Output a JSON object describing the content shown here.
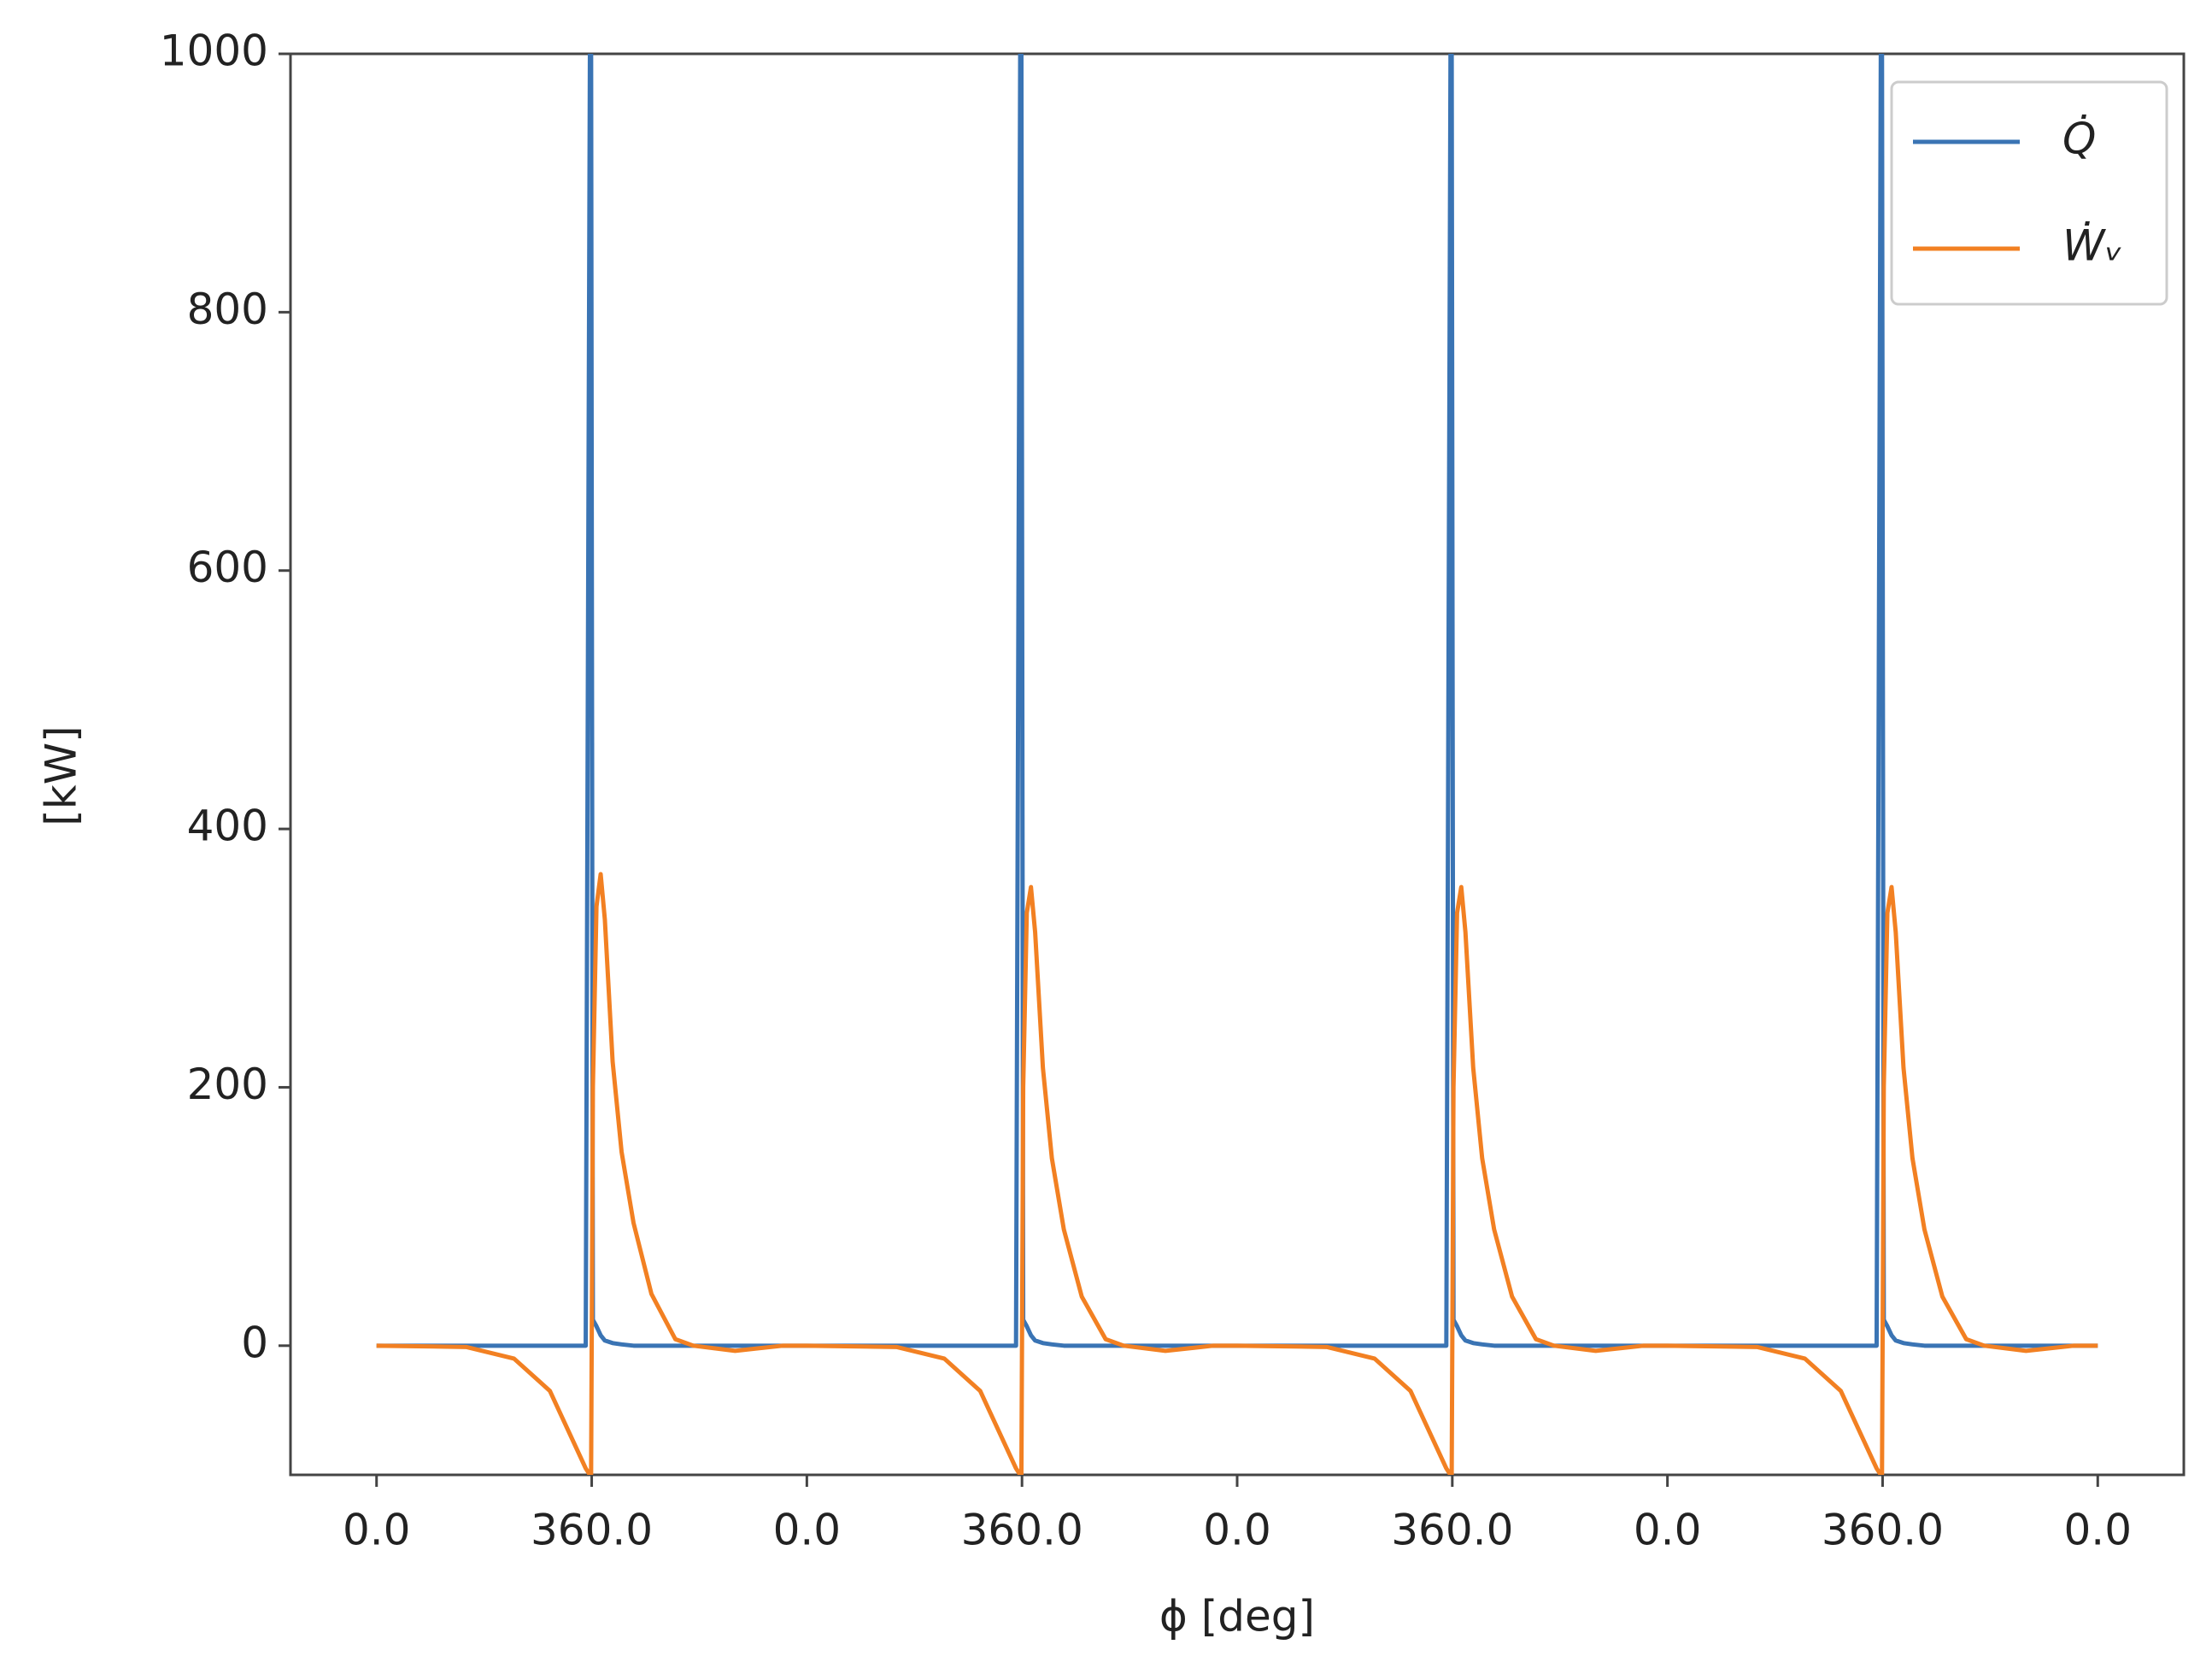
{
  "chart_data": {
    "type": "line",
    "x_label": "ϕ [deg]",
    "y_label": "[kW]",
    "x": [
      0,
      150,
      230,
      290,
      330,
      350,
      357,
      359,
      362,
      368,
      375,
      382,
      395,
      410,
      430,
      460,
      500,
      530,
      600,
      680,
      720,
      870,
      950,
      1010,
      1050,
      1070,
      1077,
      1079,
      1082,
      1088,
      1095,
      1102,
      1115,
      1130,
      1150,
      1180,
      1220,
      1250,
      1320,
      1400,
      1440,
      1590,
      1670,
      1730,
      1770,
      1790,
      1797,
      1799,
      1802,
      1808,
      1815,
      1822,
      1835,
      1850,
      1870,
      1900,
      1940,
      1970,
      2040,
      2120,
      2160,
      2310,
      2390,
      2450,
      2490,
      2510,
      2517,
      2519,
      2522,
      2528,
      2535,
      2542,
      2555,
      2570,
      2590,
      2620,
      2660,
      2690,
      2760,
      2840,
      2880
    ],
    "series": [
      {
        "name": "Q̇",
        "color": "#3a74b4",
        "values": [
          0,
          0,
          0,
          0,
          0,
          0,
          1000,
          1000,
          20,
          15,
          8,
          4,
          2,
          1,
          0,
          0,
          0,
          0,
          0,
          0,
          0,
          0,
          0,
          0,
          0,
          0,
          1000,
          1000,
          20,
          15,
          8,
          4,
          2,
          1,
          0,
          0,
          0,
          0,
          0,
          0,
          0,
          0,
          0,
          0,
          0,
          0,
          1000,
          1000,
          20,
          15,
          8,
          4,
          2,
          1,
          0,
          0,
          0,
          0,
          0,
          0,
          0,
          0,
          0,
          0,
          0,
          0,
          1000,
          1000,
          20,
          15,
          8,
          4,
          2,
          1,
          0,
          0,
          0,
          0,
          0,
          0,
          0
        ]
      },
      {
        "name": "Ẇᵥ",
        "color": "#f28022",
        "values": [
          0,
          -1,
          -10,
          -35,
          -75,
          -95,
          -100,
          -100,
          200,
          340,
          365,
          330,
          220,
          150,
          95,
          40,
          5,
          0,
          -4,
          0,
          0,
          -1,
          -10,
          -35,
          -75,
          -95,
          -100,
          -100,
          200,
          335,
          355,
          320,
          215,
          145,
          90,
          38,
          5,
          0,
          -4,
          0,
          0,
          -1,
          -10,
          -35,
          -75,
          -95,
          -100,
          -100,
          200,
          335,
          355,
          320,
          215,
          145,
          90,
          38,
          5,
          0,
          -4,
          0,
          0,
          -1,
          -10,
          -35,
          -75,
          -95,
          -100,
          -100,
          200,
          335,
          355,
          320,
          215,
          145,
          90,
          38,
          5,
          0,
          -4,
          0,
          0
        ]
      }
    ],
    "xlim": [
      -144,
      3024
    ],
    "ylim": [
      -100,
      1000
    ],
    "xticks": [
      {
        "value": 0,
        "label": "0.0"
      },
      {
        "value": 360,
        "label": "360.0"
      },
      {
        "value": 720,
        "label": "0.0"
      },
      {
        "value": 1080,
        "label": "360.0"
      },
      {
        "value": 1440,
        "label": "0.0"
      },
      {
        "value": 1800,
        "label": "360.0"
      },
      {
        "value": 2160,
        "label": "0.0"
      },
      {
        "value": 2520,
        "label": "360.0"
      },
      {
        "value": 2880,
        "label": "0.0"
      }
    ],
    "yticks": [
      0,
      200,
      400,
      600,
      800,
      1000
    ],
    "grid": false,
    "legend": "upper right"
  }
}
